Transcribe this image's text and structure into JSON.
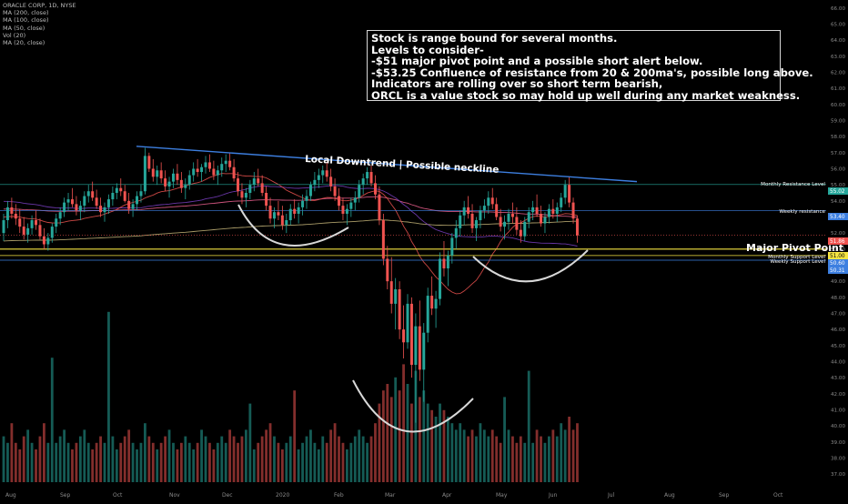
{
  "legend": {
    "items": [
      "ORACLE CORP, 1D, NYSE",
      "MA (200, close)",
      "MA (100, close)",
      "MA (50, close)",
      "Vol (20)",
      "MA (20, close)"
    ]
  },
  "annotations": {
    "note_lines": [
      "Stock is range bound for several months.",
      "Levels to consider-",
      "-$51 major pivot point and a possible short alert below.",
      "-$53.25 Confluence of resistance from 20 & 200ma's, possible long above.",
      "Indicators are rolling over so short term bearish,",
      "ORCL is a value stock so may hold up well during any market weakness."
    ],
    "downtrend_label": "Local Downtrend | Possible neckline",
    "pivot_label": "Major Pivot Point"
  },
  "colors": {
    "up": "#26a69a",
    "down": "#ef5350",
    "trendline": "#3d7fe0",
    "pivot": "#f5e642",
    "support": "#3d7fe0",
    "resistance_green": "#26a69a",
    "arc": "#d8d8d8",
    "ma200": "#c8b77a",
    "ma100": "#f06292",
    "ma50": "#7b3fc4",
    "ma20": "#ef5350"
  },
  "chart_data": {
    "type": "candlestick",
    "y_axis": {
      "ticks": [
        "66.00",
        "65.00",
        "64.00",
        "63.00",
        "62.00",
        "61.00",
        "60.00",
        "59.00",
        "58.00",
        "57.00",
        "56.00",
        "55.00",
        "54.00",
        "53.00",
        "52.00",
        "51.00",
        "50.00",
        "49.00",
        "48.00",
        "47.00",
        "46.00",
        "45.00",
        "44.00",
        "43.00",
        "42.00",
        "41.00",
        "40.00",
        "39.00",
        "38.00",
        "37.00"
      ],
      "min": 36.5,
      "max": 66.5
    },
    "x_axis": {
      "ticks": [
        "Aug",
        "Sep",
        "Oct",
        "Nov",
        "Dec",
        "2020",
        "Feb",
        "Mar",
        "Apr",
        "May",
        "Jun",
        "Jul",
        "Aug",
        "Sep",
        "Oct"
      ]
    },
    "price_labels": [
      {
        "value": 55.02,
        "text": "55.02",
        "color": "#26a69a"
      },
      {
        "value": 53.4,
        "text": "53.40",
        "color": "#3d7fe0"
      },
      {
        "value": 51.86,
        "text": "51.86",
        "color": "#ef5350"
      },
      {
        "value": 51.0,
        "text": "51.00",
        "color": "#f5e642"
      },
      {
        "value": 50.6,
        "text": "50.60",
        "color": "#3d7fe0"
      },
      {
        "value": 50.31,
        "text": "50.31",
        "color": "#3d7fe0"
      }
    ],
    "levels": [
      {
        "name": "Monthly Resistance Level",
        "value": 55.02
      },
      {
        "name": "Weekly resistance",
        "value": 53.4
      },
      {
        "name": "Monthly Support Level",
        "value": 50.6
      },
      {
        "name": "Weekly Support Level",
        "value": 50.31
      }
    ],
    "pivot": 51.0,
    "ohlc": [
      [
        52.0,
        53.2,
        51.5,
        52.8
      ],
      [
        52.8,
        54.0,
        52.3,
        53.6
      ],
      [
        53.6,
        54.2,
        52.9,
        53.2
      ],
      [
        53.2,
        53.8,
        52.5,
        52.9
      ],
      [
        52.9,
        53.5,
        52.0,
        52.4
      ],
      [
        52.4,
        53.0,
        51.6,
        51.9
      ],
      [
        51.9,
        52.6,
        51.4,
        52.3
      ],
      [
        52.3,
        53.1,
        51.9,
        52.8
      ],
      [
        52.8,
        53.4,
        52.2,
        52.5
      ],
      [
        52.5,
        52.9,
        51.6,
        51.8
      ],
      [
        51.8,
        52.3,
        51.0,
        51.3
      ],
      [
        51.3,
        52.0,
        50.9,
        51.7
      ],
      [
        51.7,
        52.6,
        51.4,
        52.4
      ],
      [
        52.4,
        53.2,
        52.0,
        52.9
      ],
      [
        52.9,
        53.6,
        52.5,
        53.3
      ],
      [
        53.3,
        54.2,
        53.0,
        53.9
      ],
      [
        53.9,
        54.5,
        53.4,
        54.1
      ],
      [
        54.1,
        54.8,
        53.6,
        53.8
      ],
      [
        53.8,
        54.3,
        53.1,
        53.4
      ],
      [
        53.4,
        54.0,
        52.8,
        53.7
      ],
      [
        53.7,
        54.6,
        53.3,
        54.3
      ],
      [
        54.3,
        55.0,
        53.9,
        54.6
      ],
      [
        54.6,
        55.2,
        54.0,
        54.2
      ],
      [
        54.2,
        54.7,
        53.5,
        53.7
      ],
      [
        53.7,
        54.2,
        53.0,
        53.3
      ],
      [
        53.3,
        53.9,
        52.7,
        53.6
      ],
      [
        53.6,
        54.4,
        53.2,
        54.1
      ],
      [
        54.1,
        54.9,
        53.7,
        54.5
      ],
      [
        54.5,
        55.1,
        54.1,
        54.8
      ],
      [
        54.8,
        55.4,
        54.3,
        54.6
      ],
      [
        54.6,
        55.0,
        53.9,
        54.0
      ],
      [
        54.0,
        54.5,
        53.2,
        53.5
      ],
      [
        53.5,
        54.1,
        53.0,
        53.8
      ],
      [
        53.8,
        54.6,
        53.4,
        54.3
      ],
      [
        54.3,
        55.0,
        53.9,
        54.6
      ],
      [
        54.6,
        57.3,
        54.4,
        56.8
      ],
      [
        56.8,
        57.0,
        55.8,
        56.0
      ],
      [
        56.0,
        56.6,
        55.2,
        55.5
      ],
      [
        55.5,
        56.2,
        55.0,
        55.9
      ],
      [
        55.9,
        56.4,
        55.1,
        55.4
      ],
      [
        55.4,
        55.9,
        54.6,
        54.9
      ],
      [
        54.9,
        55.5,
        54.2,
        55.2
      ],
      [
        55.2,
        56.0,
        54.8,
        55.7
      ],
      [
        55.7,
        56.3,
        55.0,
        55.3
      ],
      [
        55.3,
        55.8,
        54.5,
        54.8
      ],
      [
        54.8,
        55.4,
        54.1,
        55.0
      ],
      [
        55.0,
        55.9,
        54.7,
        55.6
      ],
      [
        55.6,
        56.4,
        55.2,
        56.0
      ],
      [
        56.0,
        56.6,
        55.5,
        55.8
      ],
      [
        55.8,
        56.3,
        55.2,
        56.1
      ],
      [
        56.1,
        56.8,
        55.7,
        56.4
      ],
      [
        56.4,
        56.9,
        55.8,
        56.0
      ],
      [
        56.0,
        56.5,
        55.3,
        55.6
      ],
      [
        55.6,
        56.2,
        55.0,
        55.9
      ],
      [
        55.9,
        56.7,
        55.5,
        56.3
      ],
      [
        56.3,
        56.9,
        55.8,
        56.5
      ],
      [
        56.5,
        57.0,
        55.9,
        56.1
      ],
      [
        56.1,
        56.6,
        55.2,
        55.4
      ],
      [
        55.4,
        55.8,
        54.3,
        54.6
      ],
      [
        54.6,
        55.1,
        53.8,
        54.2
      ],
      [
        54.2,
        54.8,
        53.6,
        54.5
      ],
      [
        54.5,
        55.3,
        54.1,
        55.0
      ],
      [
        55.0,
        55.8,
        54.6,
        55.4
      ],
      [
        55.4,
        56.0,
        54.9,
        55.1
      ],
      [
        55.1,
        55.6,
        54.3,
        54.5
      ],
      [
        54.5,
        54.9,
        53.4,
        53.7
      ],
      [
        53.7,
        54.2,
        52.6,
        52.9
      ],
      [
        52.9,
        53.6,
        52.3,
        53.3
      ],
      [
        53.3,
        54.0,
        52.8,
        53.1
      ],
      [
        53.1,
        53.7,
        52.2,
        52.5
      ],
      [
        52.5,
        53.2,
        52.0,
        52.8
      ],
      [
        52.8,
        53.8,
        52.5,
        53.5
      ],
      [
        53.5,
        54.1,
        52.9,
        53.2
      ],
      [
        53.2,
        53.9,
        52.6,
        53.6
      ],
      [
        53.6,
        54.4,
        53.1,
        54.0
      ],
      [
        54.0,
        54.7,
        53.5,
        54.3
      ],
      [
        54.3,
        55.2,
        54.0,
        55.0
      ],
      [
        55.0,
        55.8,
        54.6,
        55.3
      ],
      [
        55.3,
        56.0,
        54.8,
        55.6
      ],
      [
        55.6,
        56.2,
        55.1,
        55.9
      ],
      [
        55.9,
        56.4,
        55.2,
        55.5
      ],
      [
        55.5,
        56.0,
        54.6,
        54.9
      ],
      [
        54.9,
        55.4,
        54.0,
        54.3
      ],
      [
        54.3,
        54.8,
        53.4,
        53.7
      ],
      [
        53.7,
        54.2,
        52.8,
        53.2
      ],
      [
        53.2,
        53.8,
        52.5,
        53.5
      ],
      [
        53.5,
        54.2,
        53.0,
        53.9
      ],
      [
        53.9,
        54.6,
        53.4,
        54.2
      ],
      [
        54.2,
        55.3,
        53.9,
        55.0
      ],
      [
        55.0,
        55.7,
        54.4,
        55.4
      ],
      [
        55.4,
        56.1,
        55.0,
        55.8
      ],
      [
        55.8,
        56.2,
        54.9,
        55.1
      ],
      [
        55.1,
        55.6,
        54.1,
        54.4
      ],
      [
        54.4,
        54.9,
        52.5,
        52.8
      ],
      [
        52.8,
        53.2,
        50.0,
        50.4
      ],
      [
        50.4,
        51.2,
        48.5,
        49.0
      ],
      [
        49.0,
        50.5,
        47.0,
        47.6
      ],
      [
        47.6,
        49.2,
        46.0,
        48.5
      ],
      [
        48.5,
        49.0,
        45.4,
        46.0
      ],
      [
        46.0,
        47.5,
        44.2,
        45.2
      ],
      [
        45.2,
        48.2,
        44.8,
        47.6
      ],
      [
        47.6,
        48.0,
        43.0,
        43.8
      ],
      [
        43.8,
        47.0,
        40.2,
        46.2
      ],
      [
        46.2,
        47.8,
        42.8,
        43.5
      ],
      [
        43.5,
        46.4,
        41.5,
        45.8
      ],
      [
        45.8,
        48.6,
        45.2,
        48.1
      ],
      [
        48.1,
        49.3,
        46.9,
        47.3
      ],
      [
        47.3,
        48.4,
        46.1,
        47.9
      ],
      [
        47.9,
        50.8,
        47.5,
        50.4
      ],
      [
        50.4,
        51.5,
        49.3,
        49.8
      ],
      [
        49.8,
        50.9,
        48.7,
        50.6
      ],
      [
        50.6,
        52.0,
        50.1,
        51.7
      ],
      [
        51.7,
        52.8,
        51.0,
        52.3
      ],
      [
        52.3,
        53.4,
        51.8,
        53.1
      ],
      [
        53.1,
        54.0,
        52.5,
        53.6
      ],
      [
        53.6,
        54.3,
        52.9,
        53.2
      ],
      [
        53.2,
        53.8,
        52.0,
        52.3
      ],
      [
        52.3,
        53.0,
        51.5,
        52.8
      ],
      [
        52.8,
        53.7,
        52.3,
        53.4
      ],
      [
        53.4,
        54.1,
        52.9,
        53.7
      ],
      [
        53.7,
        54.6,
        53.2,
        54.2
      ],
      [
        54.2,
        54.8,
        53.5,
        53.8
      ],
      [
        53.8,
        54.2,
        52.8,
        53.0
      ],
      [
        53.0,
        53.5,
        52.1,
        52.4
      ],
      [
        52.4,
        53.1,
        51.6,
        52.7
      ],
      [
        52.7,
        53.5,
        52.2,
        53.2
      ],
      [
        53.2,
        53.9,
        52.6,
        53.0
      ],
      [
        53.0,
        53.6,
        51.9,
        52.2
      ],
      [
        52.2,
        52.8,
        51.4,
        51.8
      ],
      [
        51.8,
        53.0,
        51.5,
        52.7
      ],
      [
        52.7,
        53.6,
        52.3,
        53.3
      ],
      [
        53.3,
        54.0,
        52.8,
        53.6
      ],
      [
        53.6,
        54.4,
        53.0,
        53.2
      ],
      [
        53.2,
        53.7,
        52.4,
        52.6
      ],
      [
        52.6,
        53.3,
        52.0,
        53.0
      ],
      [
        53.0,
        53.8,
        52.6,
        53.5
      ],
      [
        53.5,
        54.1,
        52.9,
        53.2
      ],
      [
        53.2,
        53.9,
        52.7,
        53.6
      ],
      [
        53.6,
        54.5,
        53.3,
        54.2
      ],
      [
        54.2,
        55.3,
        53.8,
        55.0
      ],
      [
        55.0,
        55.5,
        53.6,
        53.9
      ],
      [
        53.9,
        54.2,
        52.6,
        52.9
      ],
      [
        52.9,
        53.1,
        51.4,
        51.86
      ]
    ],
    "volume": [
      7,
      6,
      9,
      6,
      5,
      7,
      8,
      6,
      5,
      7,
      9,
      6,
      5,
      6,
      7,
      8,
      6,
      5,
      6,
      7,
      8,
      6,
      5,
      6,
      7,
      6,
      8,
      7,
      5,
      6,
      7,
      8,
      6,
      5,
      6,
      9,
      7,
      6,
      5,
      6,
      7,
      8,
      6,
      5,
      6,
      7,
      6,
      5,
      6,
      8,
      7,
      6,
      5,
      6,
      7,
      6,
      8,
      7,
      6,
      7,
      8,
      6,
      5,
      6,
      7,
      8,
      9,
      7,
      6,
      5,
      6,
      7,
      6,
      5,
      6,
      7,
      8,
      6,
      5,
      7,
      6,
      8,
      9,
      7,
      6,
      5,
      6,
      7,
      8,
      7,
      6,
      7,
      9,
      12,
      14,
      15,
      13,
      16,
      14,
      18,
      15,
      12,
      17,
      13,
      14,
      12,
      11,
      10,
      12,
      11,
      10,
      9,
      8,
      9,
      8,
      7,
      8,
      7,
      9,
      8,
      7,
      8,
      7,
      6,
      7,
      8,
      7,
      6,
      7,
      6,
      7,
      6,
      8,
      7,
      6,
      7,
      8,
      7,
      9,
      8,
      10,
      8,
      9
    ],
    "volume_spikes": [
      [
        12,
        19
      ],
      [
        26,
        26
      ],
      [
        61,
        12
      ],
      [
        72,
        14
      ],
      [
        124,
        13
      ],
      [
        130,
        17
      ]
    ]
  }
}
